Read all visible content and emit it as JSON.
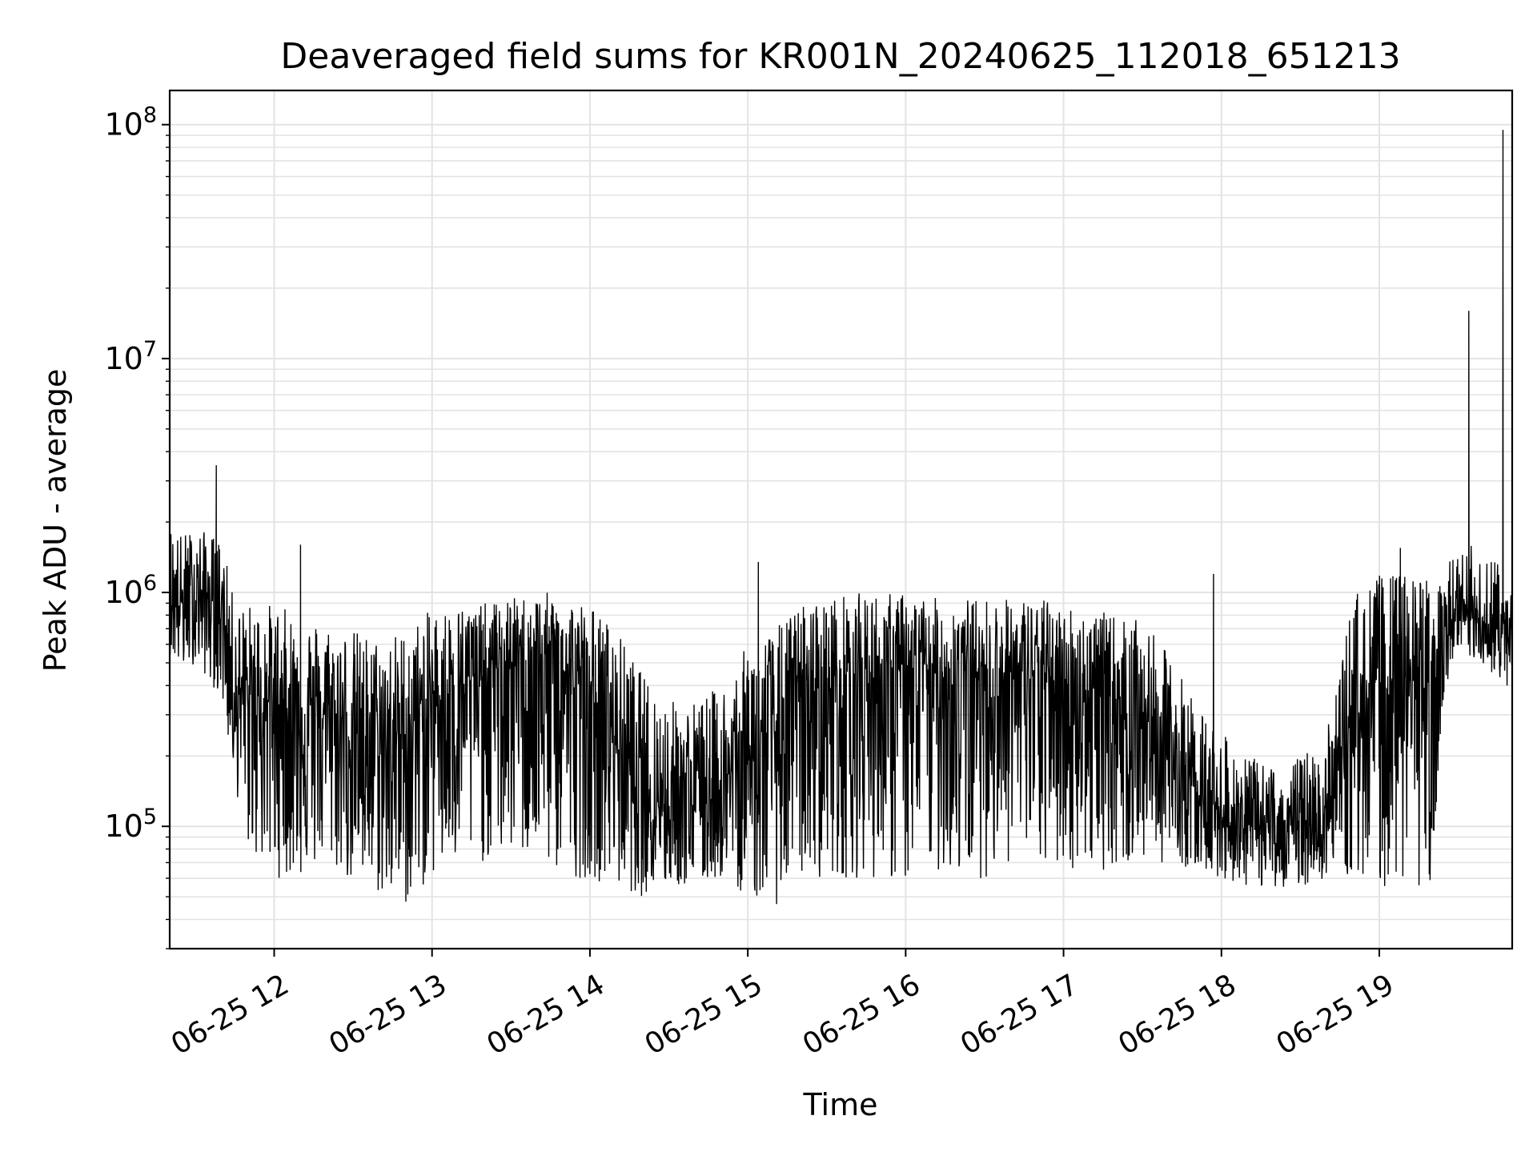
{
  "chart_data": {
    "type": "line",
    "title": "Deaveraged field sums for KR001N_20240625_112018_651213",
    "xlabel": "Time",
    "ylabel": "Peak ADU - average",
    "yscale": "log",
    "ylim": [
      30000,
      140000000
    ],
    "xlim": [
      "2024-06-25 11:20:18",
      "2024-06-25 19:50:30"
    ],
    "x_ticks": [
      {
        "value": "2024-06-25 12:00",
        "label": "06-25 12"
      },
      {
        "value": "2024-06-25 13:00",
        "label": "06-25 13"
      },
      {
        "value": "2024-06-25 14:00",
        "label": "06-25 14"
      },
      {
        "value": "2024-06-25 15:00",
        "label": "06-25 15"
      },
      {
        "value": "2024-06-25 16:00",
        "label": "06-25 16"
      },
      {
        "value": "2024-06-25 17:00",
        "label": "06-25 17"
      },
      {
        "value": "2024-06-25 18:00",
        "label": "06-25 18"
      },
      {
        "value": "2024-06-25 19:00",
        "label": "06-25 19"
      }
    ],
    "y_ticks": [
      {
        "value": 100000,
        "mantissa": "10",
        "exponent": "5"
      },
      {
        "value": 1000000,
        "mantissa": "10",
        "exponent": "6"
      },
      {
        "value": 10000000,
        "mantissa": "10",
        "exponent": "7"
      },
      {
        "value": 100000000,
        "mantissa": "10",
        "exponent": "8"
      }
    ],
    "grid": true,
    "series_color": "#000000",
    "series": [
      {
        "x": [
          "2024-06-25 11:20",
          "2024-06-25 11:25",
          "2024-06-25 11:30",
          "2024-06-25 11:35",
          "2024-06-25 11:40",
          "2024-06-25 11:45",
          "2024-06-25 11:50",
          "2024-06-25 12:00",
          "2024-06-25 12:10",
          "2024-06-25 12:20",
          "2024-06-25 12:30",
          "2024-06-25 12:40",
          "2024-06-25 12:50",
          "2024-06-25 13:00",
          "2024-06-25 13:10",
          "2024-06-25 13:20",
          "2024-06-25 13:30",
          "2024-06-25 13:40",
          "2024-06-25 13:50",
          "2024-06-25 14:00",
          "2024-06-25 14:10",
          "2024-06-25 14:20",
          "2024-06-25 14:30",
          "2024-06-25 14:40",
          "2024-06-25 14:50",
          "2024-06-25 15:00",
          "2024-06-25 15:10",
          "2024-06-25 15:20",
          "2024-06-25 15:30",
          "2024-06-25 15:40",
          "2024-06-25 15:50",
          "2024-06-25 16:00",
          "2024-06-25 16:10",
          "2024-06-25 16:20",
          "2024-06-25 16:30",
          "2024-06-25 16:40",
          "2024-06-25 16:50",
          "2024-06-25 17:00",
          "2024-06-25 17:10",
          "2024-06-25 17:20",
          "2024-06-25 17:30",
          "2024-06-25 17:40",
          "2024-06-25 17:50",
          "2024-06-25 18:00",
          "2024-06-25 18:10",
          "2024-06-25 18:20",
          "2024-06-25 18:30",
          "2024-06-25 18:40",
          "2024-06-25 18:50",
          "2024-06-25 19:00",
          "2024-06-25 19:10",
          "2024-06-25 19:20",
          "2024-06-25 19:25",
          "2024-06-25 19:30",
          "2024-06-25 19:35",
          "2024-06-25 19:40",
          "2024-06-25 19:45",
          "2024-06-25 19:50"
        ],
        "low": [
          550000,
          450000,
          500000,
          420000,
          350000,
          150000,
          80000,
          60000,
          60000,
          70000,
          55000,
          50000,
          45000,
          60000,
          65000,
          70000,
          75000,
          70000,
          60000,
          60000,
          55000,
          50000,
          55000,
          55000,
          60000,
          50000,
          45000,
          60000,
          60000,
          60000,
          60000,
          55000,
          65000,
          60000,
          60000,
          70000,
          65000,
          65000,
          65000,
          65000,
          70000,
          70000,
          65000,
          60000,
          55000,
          55000,
          55000,
          60000,
          60000,
          55000,
          55000,
          55000,
          350000,
          550000,
          500000,
          450000,
          450000,
          350000
        ],
        "high": [
          2000000,
          1800000,
          1900000,
          1800000,
          1700000,
          900000,
          900000,
          900000,
          800000,
          750000,
          700000,
          650000,
          700000,
          850000,
          900000,
          900000,
          950000,
          1000000,
          1000000,
          900000,
          700000,
          450000,
          350000,
          350000,
          400000,
          600000,
          700000,
          900000,
          950000,
          1000000,
          1000000,
          1000000,
          950000,
          950000,
          950000,
          950000,
          950000,
          900000,
          850000,
          800000,
          750000,
          550000,
          350000,
          250000,
          200000,
          180000,
          200000,
          250000,
          1000000,
          1200000,
          1200000,
          1200000,
          1300000,
          1500000,
          1600000,
          1500000,
          1400000,
          1300000
        ],
        "typical": [
          1000000,
          900000,
          1000000,
          950000,
          900000,
          400000,
          350000,
          350000,
          300000,
          300000,
          250000,
          220000,
          250000,
          350000,
          400000,
          450000,
          500000,
          500000,
          450000,
          350000,
          250000,
          150000,
          130000,
          130000,
          150000,
          200000,
          250000,
          350000,
          400000,
          450000,
          450000,
          450000,
          450000,
          450000,
          450000,
          450000,
          450000,
          400000,
          380000,
          350000,
          300000,
          200000,
          150000,
          110000,
          100000,
          95000,
          100000,
          110000,
          300000,
          400000,
          400000,
          400000,
          700000,
          750000,
          750000,
          700000,
          700000,
          650000
        ]
      }
    ],
    "spikes": [
      {
        "x": "2024-06-25 11:38",
        "y": 3500000
      },
      {
        "x": "2024-06-25 12:10",
        "y": 1600000
      },
      {
        "x": "2024-06-25 15:04",
        "y": 1350000
      },
      {
        "x": "2024-06-25 17:57",
        "y": 1200000
      },
      {
        "x": "2024-06-25 19:08",
        "y": 1550000
      },
      {
        "x": "2024-06-25 19:34",
        "y": 16000000
      },
      {
        "x": "2024-06-25 19:47",
        "y": 95000000
      }
    ]
  }
}
